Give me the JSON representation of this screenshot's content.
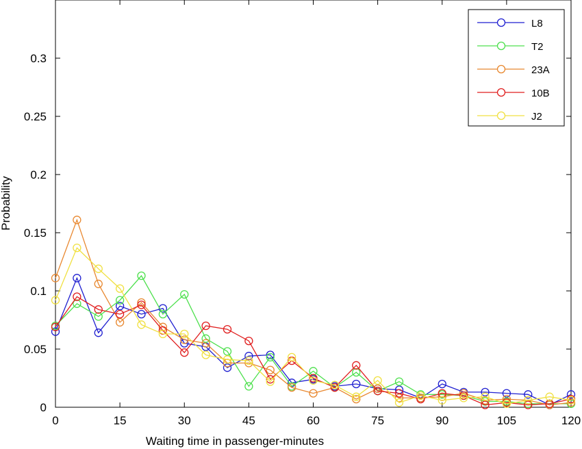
{
  "chart_data": {
    "type": "line",
    "xlabel": "Waiting time in passenger-minutes",
    "ylabel": "Probability",
    "xlim": [
      0,
      120
    ],
    "ylim": [
      0,
      0.35
    ],
    "xticks": [
      0,
      15,
      30,
      45,
      60,
      75,
      90,
      105,
      120
    ],
    "xtick_labels": [
      "0",
      "15",
      "30",
      "45",
      "60",
      "75",
      "90",
      "105",
      "120"
    ],
    "yticks": [
      0,
      0.05,
      0.1,
      0.15,
      0.2,
      0.25,
      0.3
    ],
    "ytick_labels": [
      "0",
      "0.05",
      "0.1",
      "0.15",
      "0.2",
      "0.25",
      "0.3"
    ],
    "grid": false,
    "legend_position": "top-right",
    "x": [
      0,
      5,
      10,
      15,
      20,
      25,
      30,
      35,
      40,
      45,
      50,
      55,
      60,
      65,
      70,
      75,
      80,
      85,
      90,
      95,
      100,
      105,
      110,
      115,
      120
    ],
    "series": [
      {
        "name": "L8",
        "color": "#1f1fd0",
        "values": [
          0.065,
          0.111,
          0.064,
          0.087,
          0.08,
          0.085,
          0.055,
          0.052,
          0.034,
          0.044,
          0.045,
          0.021,
          0.024,
          0.018,
          0.02,
          0.016,
          0.015,
          0.008,
          0.02,
          0.013,
          0.013,
          0.012,
          0.011,
          0.002,
          0.011
        ]
      },
      {
        "name": "T2",
        "color": "#4de04d",
        "values": [
          0.07,
          0.089,
          0.078,
          0.092,
          0.113,
          0.08,
          0.097,
          0.059,
          0.048,
          0.018,
          0.043,
          0.018,
          0.031,
          0.017,
          0.03,
          0.014,
          0.022,
          0.011,
          0.011,
          0.01,
          0.005,
          0.005,
          0.003,
          0.003,
          0.003
        ]
      },
      {
        "name": "23A",
        "color": "#e8872e",
        "values": [
          0.111,
          0.161,
          0.106,
          0.073,
          0.09,
          0.069,
          0.058,
          0.055,
          0.038,
          0.038,
          0.032,
          0.017,
          0.012,
          0.017,
          0.007,
          0.016,
          0.008,
          0.008,
          0.009,
          0.012,
          0.006,
          0.007,
          0.006,
          0.002,
          0.004
        ]
      },
      {
        "name": "10B",
        "color": "#e01e1e",
        "values": [
          0.069,
          0.095,
          0.084,
          0.08,
          0.088,
          0.066,
          0.047,
          0.07,
          0.067,
          0.057,
          0.024,
          0.04,
          0.025,
          0.017,
          0.036,
          0.014,
          0.012,
          0.007,
          0.012,
          0.01,
          0.002,
          0.004,
          0.002,
          0.003,
          0.007
        ]
      },
      {
        "name": "J2",
        "color": "#f0e040",
        "values": [
          0.092,
          0.137,
          0.119,
          0.102,
          0.071,
          0.063,
          0.063,
          0.045,
          0.041,
          0.04,
          0.022,
          0.043,
          0.023,
          0.019,
          0.009,
          0.023,
          0.004,
          0.01,
          0.006,
          0.008,
          0.009,
          0.003,
          0.006,
          0.009,
          0.006
        ]
      }
    ]
  }
}
